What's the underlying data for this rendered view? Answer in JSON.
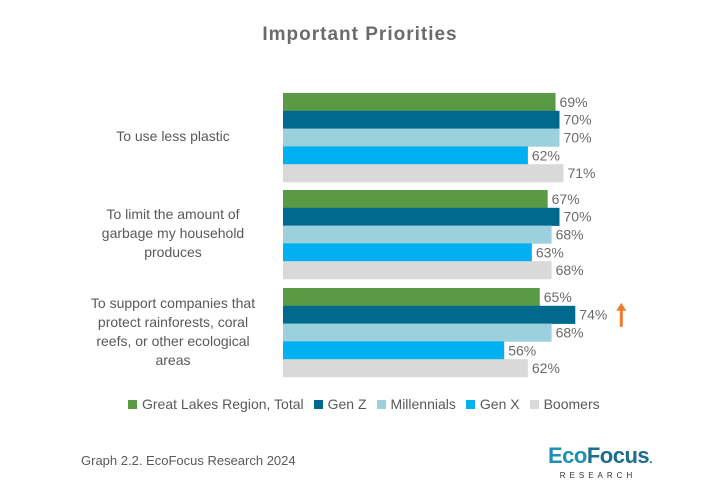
{
  "chart_data": {
    "type": "bar",
    "orientation": "horizontal",
    "title": "Important Priorities",
    "xlabel": "",
    "ylabel": "",
    "xlim": [
      0,
      100
    ],
    "grid": false,
    "legend_position": "bottom",
    "categories": [
      "To use less plastic",
      "To limit the amount of garbage my household produces",
      "To support companies that protect rainforests, coral reefs, or other ecological areas"
    ],
    "category_lines": [
      [
        "To use less plastic"
      ],
      [
        "To limit the amount of",
        "garbage my household",
        "produces"
      ],
      [
        "To support companies that",
        "protect rainforests, coral",
        "reefs, or other ecological",
        "areas"
      ]
    ],
    "series": [
      {
        "name": "Great Lakes Region, Total",
        "color": "#5b9a45",
        "values": [
          69,
          67,
          65
        ]
      },
      {
        "name": "Gen Z",
        "color": "#006a8e",
        "values": [
          70,
          70,
          74
        ]
      },
      {
        "name": "Millennials",
        "color": "#9bd0dc",
        "values": [
          70,
          68,
          68
        ]
      },
      {
        "name": "Gen X",
        "color": "#00b0f0",
        "values": [
          62,
          63,
          56
        ]
      },
      {
        "name": "Boomers",
        "color": "#d9d9d9",
        "values": [
          71,
          68,
          62
        ]
      }
    ],
    "value_suffix": "%",
    "annotations": [
      {
        "category_index": 2,
        "series": "Gen Z",
        "type": "up-arrow",
        "color": "#ed7d31"
      }
    ]
  },
  "footer": {
    "caption": "Graph 2.2. EcoFocus Research 2024"
  },
  "logo": {
    "eco": "Eco",
    "focus": "Focus",
    "dot": ".",
    "sub": "RESEARCH"
  }
}
